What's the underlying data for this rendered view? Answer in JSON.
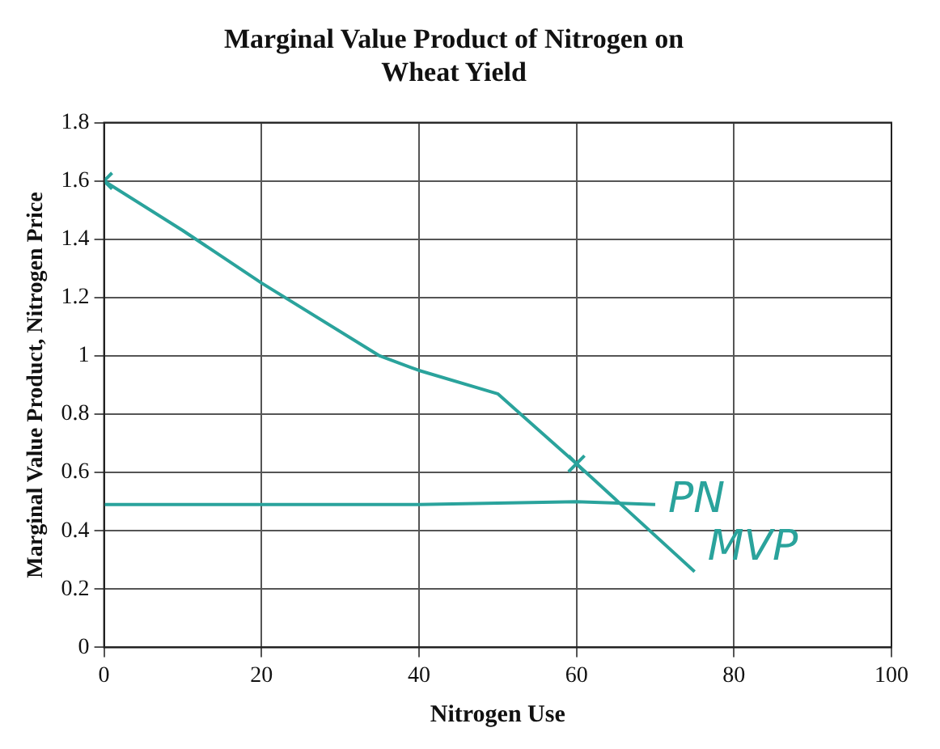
{
  "chart_data": {
    "type": "line",
    "title": "Marginal Value Product of Nitrogen on\nWheat Yield",
    "xlabel": "Nitrogen Use",
    "ylabel": "Marginal Value Product, Nitrogen Price",
    "xlim": [
      0,
      100
    ],
    "xticks": [
      0,
      20,
      40,
      60,
      80,
      100
    ],
    "ylim": [
      0,
      1.8
    ],
    "yticks": [
      0,
      0.2,
      0.4,
      0.6,
      0.8,
      1,
      1.2,
      1.4,
      1.6,
      1.8
    ],
    "grid": true,
    "legend": false,
    "marker": "none",
    "series": [
      {
        "name": "PN",
        "color": "#2aa39c",
        "x": [
          0,
          20,
          40,
          60,
          70
        ],
        "values": [
          0.49,
          0.49,
          0.49,
          0.5,
          0.49
        ]
      },
      {
        "name": "MVP",
        "color": "#2aa39c",
        "x": [
          0,
          10,
          20,
          35,
          40,
          50,
          60,
          75
        ],
        "values": [
          1.6,
          1.43,
          1.25,
          1.0,
          0.95,
          0.87,
          0.63,
          0.26
        ]
      },
      {
        "type": "scatter",
        "marker": "cross",
        "color": "#2aa39c",
        "x": [
          0,
          60
        ],
        "values": [
          1.6,
          0.63
        ]
      }
    ]
  }
}
